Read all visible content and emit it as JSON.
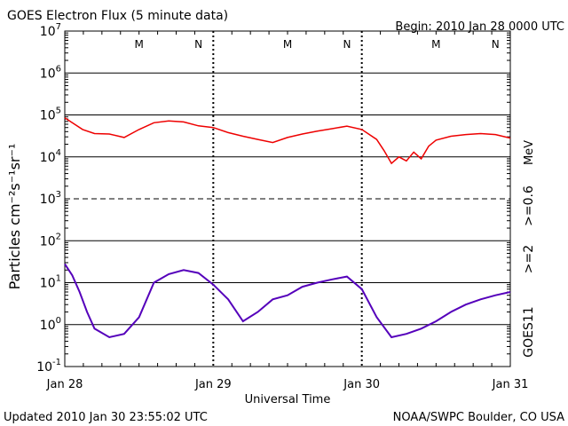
{
  "header": {
    "title": "GOES Electron Flux (5 minute data)",
    "begin": "Begin: 2010 Jan 28 0000 UTC"
  },
  "footer": {
    "updated": "Updated 2010 Jan 30 23:55:02 UTC",
    "credit": "NOAA/SWPC Boulder, CO USA"
  },
  "colors": {
    "high_energy": "#ee0000",
    "low_energy": "#5500bb",
    "satellite": "#000000"
  },
  "chart_data": {
    "type": "line",
    "title": "GOES Electron Flux (5 minute data)",
    "xlabel": "Universal Time",
    "ylabel": "Particles cm⁻²s⁻¹sr⁻¹",
    "yscale": "log",
    "ylim": [
      0.1,
      10000000
    ],
    "xlim": [
      0,
      3
    ],
    "grid": true,
    "x_tick_labels": [
      "Jan 28",
      "Jan 29",
      "Jan 30",
      "Jan 31"
    ],
    "y_tick_labels": [
      {
        "base": "10",
        "exp": "-1"
      },
      {
        "base": "10",
        "exp": "0"
      },
      {
        "base": "10",
        "exp": "1"
      },
      {
        "base": "10",
        "exp": "2"
      },
      {
        "base": "10",
        "exp": "3"
      },
      {
        "base": "10",
        "exp": "4"
      },
      {
        "base": "10",
        "exp": "5"
      },
      {
        "base": "10",
        "exp": "6"
      },
      {
        "base": "10",
        "exp": "7"
      }
    ],
    "day_markers": [
      {
        "label": "M",
        "x": 0.5
      },
      {
        "label": "N",
        "x": 0.9
      },
      {
        "label": "M",
        "x": 1.5
      },
      {
        "label": "N",
        "x": 1.9
      },
      {
        "label": "M",
        "x": 2.5
      },
      {
        "label": "N",
        "x": 2.9
      }
    ],
    "right_labels": {
      "mev": "MeV",
      "high": ">=0.6",
      "low": ">=2",
      "satellite": "GOES11"
    },
    "series": [
      {
        "name": ">=0.6 MeV",
        "color": "#ee0000",
        "x": [
          0,
          0.05,
          0.12,
          0.2,
          0.3,
          0.4,
          0.5,
          0.6,
          0.7,
          0.8,
          0.9,
          1.0,
          1.1,
          1.2,
          1.3,
          1.4,
          1.5,
          1.6,
          1.7,
          1.8,
          1.9,
          2.0,
          2.1,
          2.15,
          2.2,
          2.25,
          2.3,
          2.35,
          2.4,
          2.45,
          2.5,
          2.6,
          2.7,
          2.8,
          2.9,
          3.0
        ],
        "values": [
          85000,
          65000,
          45000,
          36000,
          35000,
          29000,
          45000,
          65000,
          72000,
          68000,
          55000,
          50000,
          38000,
          31000,
          26000,
          22000,
          29000,
          35000,
          41000,
          47000,
          54000,
          45000,
          26000,
          14000,
          7000,
          10000,
          8000,
          13000,
          9000,
          18000,
          25000,
          31000,
          34000,
          36000,
          34000,
          28000
        ]
      },
      {
        "name": ">=2 MeV",
        "color": "#5500bb",
        "x": [
          0,
          0.05,
          0.1,
          0.15,
          0.2,
          0.3,
          0.4,
          0.5,
          0.6,
          0.7,
          0.8,
          0.9,
          1.0,
          1.1,
          1.2,
          1.3,
          1.4,
          1.5,
          1.6,
          1.7,
          1.8,
          1.9,
          2.0,
          2.1,
          2.2,
          2.3,
          2.4,
          2.5,
          2.6,
          2.7,
          2.8,
          2.9,
          3.0
        ],
        "values": [
          28,
          15,
          6,
          2,
          0.8,
          0.5,
          0.6,
          1.5,
          10,
          16,
          20,
          17,
          9,
          4,
          1.2,
          2,
          4,
          5,
          8,
          10,
          12,
          14,
          7,
          1.5,
          0.5,
          0.6,
          0.8,
          1.2,
          2,
          3,
          4,
          5,
          6
        ]
      }
    ]
  }
}
